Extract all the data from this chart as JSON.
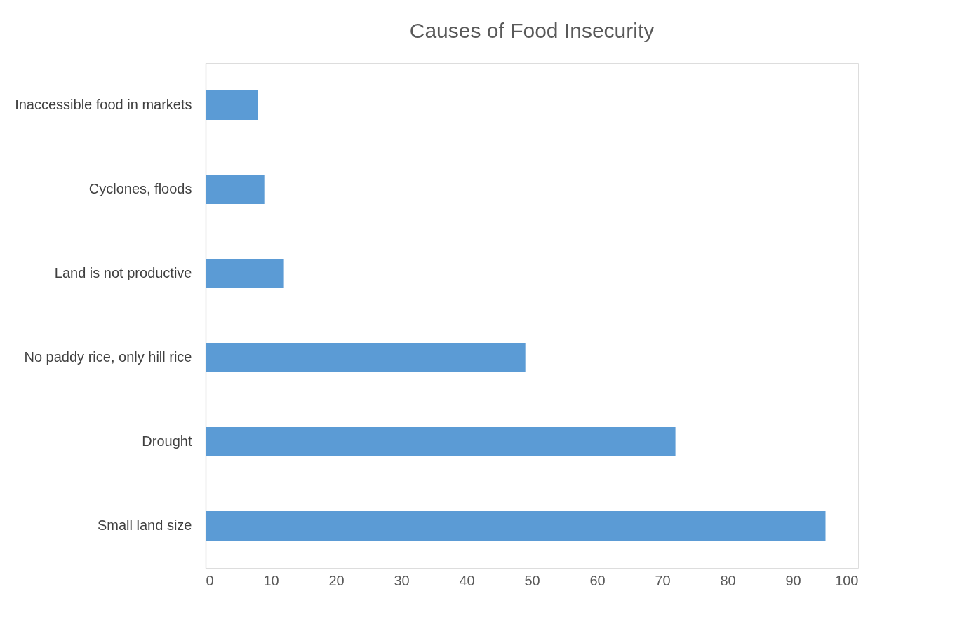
{
  "chart_data": {
    "type": "bar",
    "orientation": "horizontal",
    "title": "Causes of Food Insecurity",
    "categories": [
      "Inaccessible food in markets",
      "Cyclones, floods",
      "Land is not productive",
      "No paddy rice, only hill rice",
      "Drought",
      "Small land size"
    ],
    "values": [
      8,
      9,
      12,
      49,
      72,
      95
    ],
    "color": "#5b9bd5",
    "xlim": [
      0,
      100
    ],
    "xticks": [
      0,
      10,
      20,
      30,
      40,
      50,
      60,
      70,
      80,
      90,
      100
    ],
    "grid": false
  }
}
